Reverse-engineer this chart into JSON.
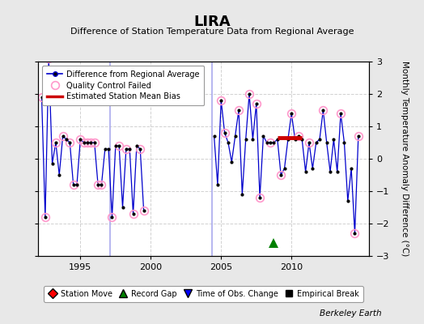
{
  "title": "LIRA",
  "subtitle": "Difference of Station Temperature Data from Regional Average",
  "ylabel": "Monthly Temperature Anomaly Difference (°C)",
  "ylim": [
    -3,
    3
  ],
  "xlim": [
    1992.0,
    2015.5
  ],
  "xticks": [
    1995,
    2000,
    2005,
    2010
  ],
  "yticks": [
    -3,
    -2,
    -1,
    0,
    1,
    2,
    3
  ],
  "background_color": "#e8e8e8",
  "plot_bg_color": "#ffffff",
  "credit": "Berkeley Earth",
  "time_series": [
    [
      1992.25,
      1.9
    ],
    [
      1992.5,
      -1.8
    ],
    [
      1992.75,
      3.1
    ],
    [
      1993.0,
      -0.15
    ],
    [
      1993.25,
      0.5
    ],
    [
      1993.5,
      -0.5
    ],
    [
      1993.75,
      0.7
    ],
    [
      1994.0,
      0.6
    ],
    [
      1994.25,
      0.5
    ],
    [
      1994.5,
      -0.8
    ],
    [
      1994.75,
      -0.8
    ],
    [
      1995.0,
      0.6
    ],
    [
      1995.25,
      0.5
    ],
    [
      1995.5,
      0.5
    ],
    [
      1995.75,
      0.5
    ],
    [
      1996.0,
      0.5
    ],
    [
      1996.25,
      -0.8
    ],
    [
      1996.5,
      -0.8
    ],
    [
      1996.75,
      0.3
    ],
    [
      1997.0,
      0.3
    ],
    [
      1997.25,
      -1.8
    ],
    [
      1997.5,
      0.4
    ],
    [
      1997.75,
      0.4
    ],
    [
      1998.0,
      -1.5
    ],
    [
      1998.25,
      0.3
    ],
    [
      1998.5,
      0.3
    ],
    [
      1998.75,
      -1.7
    ],
    [
      1999.0,
      0.4
    ],
    [
      1999.25,
      0.3
    ],
    [
      1999.5,
      -1.6
    ],
    [
      2004.5,
      0.7
    ],
    [
      2004.75,
      -0.8
    ],
    [
      2005.0,
      1.8
    ],
    [
      2005.25,
      0.8
    ],
    [
      2005.5,
      0.5
    ],
    [
      2005.75,
      -0.1
    ],
    [
      2006.0,
      0.7
    ],
    [
      2006.25,
      1.5
    ],
    [
      2006.5,
      -1.1
    ],
    [
      2006.75,
      0.6
    ],
    [
      2007.0,
      2.0
    ],
    [
      2007.25,
      0.6
    ],
    [
      2007.5,
      1.7
    ],
    [
      2007.75,
      -1.2
    ],
    [
      2008.0,
      0.7
    ],
    [
      2008.25,
      0.5
    ],
    [
      2008.5,
      0.5
    ],
    [
      2008.75,
      0.5
    ],
    [
      2009.0,
      0.6
    ],
    [
      2009.25,
      -0.5
    ],
    [
      2009.5,
      -0.3
    ],
    [
      2009.75,
      0.6
    ],
    [
      2010.0,
      1.4
    ],
    [
      2010.25,
      0.6
    ],
    [
      2010.5,
      0.7
    ],
    [
      2010.75,
      0.6
    ],
    [
      2011.0,
      -0.4
    ],
    [
      2011.25,
      0.5
    ],
    [
      2011.5,
      -0.3
    ],
    [
      2011.75,
      0.5
    ],
    [
      2012.0,
      0.6
    ],
    [
      2012.25,
      1.5
    ],
    [
      2012.5,
      0.5
    ],
    [
      2012.75,
      -0.4
    ],
    [
      2013.0,
      0.6
    ],
    [
      2013.25,
      -0.4
    ],
    [
      2013.5,
      1.4
    ],
    [
      2013.75,
      0.5
    ],
    [
      2014.0,
      -1.3
    ],
    [
      2014.25,
      -0.3
    ],
    [
      2014.5,
      -2.3
    ],
    [
      2014.75,
      0.7
    ]
  ],
  "qc_failed": [
    [
      1992.75,
      3.1
    ],
    [
      1992.25,
      1.9
    ],
    [
      1992.5,
      -1.8
    ],
    [
      1993.25,
      0.5
    ],
    [
      1993.75,
      0.7
    ],
    [
      1994.25,
      0.5
    ],
    [
      1994.5,
      -0.8
    ],
    [
      1995.0,
      0.6
    ],
    [
      1995.25,
      0.5
    ],
    [
      1995.5,
      0.5
    ],
    [
      1995.75,
      0.5
    ],
    [
      1996.0,
      0.5
    ],
    [
      1996.25,
      -0.8
    ],
    [
      1996.5,
      -0.8
    ],
    [
      1997.25,
      -1.8
    ],
    [
      1997.75,
      0.4
    ],
    [
      1998.25,
      0.3
    ],
    [
      1998.75,
      -1.7
    ],
    [
      1999.25,
      0.3
    ],
    [
      1999.5,
      -1.6
    ],
    [
      2005.0,
      1.8
    ],
    [
      2005.25,
      0.8
    ],
    [
      2006.25,
      1.5
    ],
    [
      2007.0,
      2.0
    ],
    [
      2007.5,
      1.7
    ],
    [
      2007.75,
      -1.2
    ],
    [
      2008.5,
      0.5
    ],
    [
      2009.25,
      -0.5
    ],
    [
      2010.0,
      1.4
    ],
    [
      2010.5,
      0.7
    ],
    [
      2011.25,
      0.5
    ],
    [
      2012.25,
      1.5
    ],
    [
      2013.5,
      1.4
    ],
    [
      2014.5,
      -2.3
    ],
    [
      2014.75,
      0.7
    ]
  ],
  "bias_segment": [
    2009.0,
    2010.75,
    0.65
  ],
  "vertical_lines": [
    {
      "x": 2004.35,
      "color": "#aaaaee",
      "lw": 1.2
    },
    {
      "x": 1997.1,
      "color": "#aaaaee",
      "lw": 1.2
    }
  ],
  "record_gap_x": 2008.7,
  "record_gap_y": -2.6,
  "time_obs_x": 1997.1,
  "time_obs_bottom": -3.0,
  "line_color": "#0000cc",
  "dot_color": "#000000",
  "qc_color": "#ff99cc",
  "bias_color": "#cc0000",
  "bias_lw": 3.5,
  "dot_size": 3,
  "qc_marker_size": 7,
  "gap_x_start": 2000.0,
  "gap_x_end": 2004.35
}
